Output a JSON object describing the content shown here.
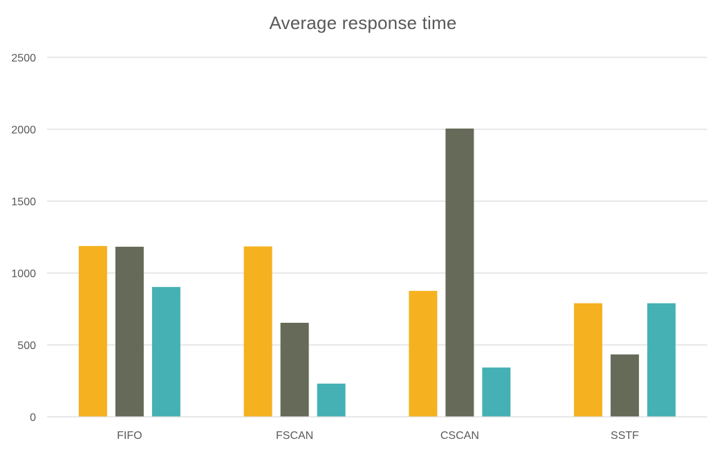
{
  "chart_data": {
    "type": "bar",
    "title": "Average response time",
    "categories": [
      "FIFO",
      "FSCAN",
      "CSCAN",
      "SSTF"
    ],
    "series": [
      {
        "values": [
          1188,
          1185,
          876,
          790
        ],
        "color": "#F5B120"
      },
      {
        "values": [
          1183,
          654,
          2005,
          434
        ],
        "color": "#666A58"
      },
      {
        "values": [
          903,
          231,
          343,
          790
        ],
        "color": "#45B1B4"
      }
    ],
    "ylim": [
      0,
      2500
    ],
    "yticks": [
      0,
      500,
      1000,
      1500,
      2000,
      2500
    ],
    "grid": true,
    "legend": "none",
    "xlabel": "",
    "ylabel": ""
  }
}
